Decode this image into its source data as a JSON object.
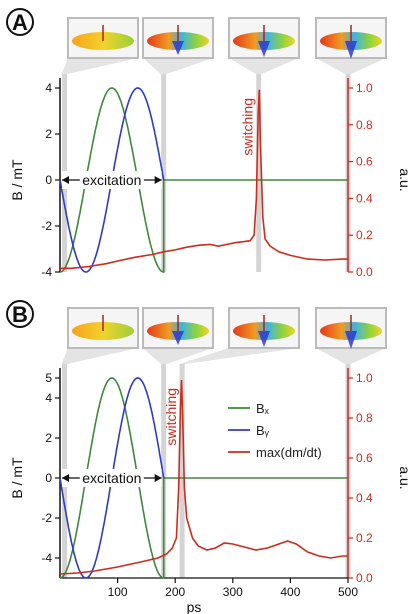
{
  "figure": {
    "colors": {
      "bx": "#3d8a3a",
      "by": "#2b3bcf",
      "dmdt": "#d12a1a",
      "marker": "#c9c9c9",
      "axis": "#111111"
    }
  },
  "chart_data": [
    {
      "panel": "A",
      "type": "line",
      "x_axis": {
        "min": 0,
        "max": 500,
        "ticks": [],
        "label": ""
      },
      "y_left": {
        "min": -4,
        "max": 4,
        "ticks": [
          4,
          2,
          0,
          -2,
          -4
        ],
        "label": "B / mT"
      },
      "y_right": {
        "min": 0,
        "max": 1.0,
        "ticks": [
          "0.0",
          "0.2",
          "0.4",
          "0.6",
          "0.8",
          "1.0"
        ],
        "label": "a.u."
      },
      "excitation": {
        "label": "excitation",
        "start": 0,
        "end": 180
      },
      "switching": {
        "label": "switching",
        "time": 345
      },
      "snapshot_times": [
        8,
        180,
        345,
        500
      ],
      "series": [
        {
          "key": "bx",
          "legend": "",
          "amplitude": 4,
          "center": 90,
          "half_width": 90,
          "axis": "left"
        },
        {
          "key": "by",
          "legend": "",
          "amplitude": 4,
          "center": 135,
          "half_width": 90,
          "axis": "left"
        },
        {
          "key": "dmdt",
          "legend": "",
          "axis": "right",
          "points": [
            [
              0,
              0.02
            ],
            [
              20,
              0.02
            ],
            [
              50,
              0.03
            ],
            [
              80,
              0.045
            ],
            [
              100,
              0.06
            ],
            [
              130,
              0.08
            ],
            [
              160,
              0.095
            ],
            [
              180,
              0.11
            ],
            [
              200,
              0.12
            ],
            [
              220,
              0.135
            ],
            [
              240,
              0.145
            ],
            [
              260,
              0.15
            ],
            [
              275,
              0.14
            ],
            [
              290,
              0.15
            ],
            [
              305,
              0.16
            ],
            [
              320,
              0.165
            ],
            [
              330,
              0.17
            ],
            [
              337,
              0.2
            ],
            [
              341,
              0.4
            ],
            [
              344,
              0.85
            ],
            [
              346,
              0.99
            ],
            [
              348,
              0.7
            ],
            [
              352,
              0.3
            ],
            [
              356,
              0.18
            ],
            [
              365,
              0.14
            ],
            [
              380,
              0.11
            ],
            [
              400,
              0.09
            ],
            [
              430,
              0.07
            ],
            [
              460,
              0.065
            ],
            [
              490,
              0.07
            ],
            [
              500,
              0.07
            ]
          ]
        }
      ]
    },
    {
      "panel": "B",
      "type": "line",
      "x_axis": {
        "min": 0,
        "max": 500,
        "ticks": [
          100,
          200,
          300,
          400,
          500
        ],
        "label": "ps"
      },
      "y_left": {
        "min": -5,
        "max": 5,
        "ticks": [
          5,
          4,
          2,
          0,
          -2,
          -4
        ],
        "label": "B / mT"
      },
      "y_right": {
        "min": 0,
        "max": 1.0,
        "ticks": [
          "0.0",
          "0.2",
          "0.4",
          "0.6",
          "0.8",
          "1.0"
        ],
        "label": "a.u."
      },
      "excitation": {
        "label": "excitation",
        "start": 0,
        "end": 180
      },
      "switching": {
        "label": "switching",
        "time": 212
      },
      "snapshot_times": [
        8,
        180,
        212,
        500
      ],
      "series": [
        {
          "key": "bx",
          "legend": "Bₓ",
          "amplitude": 5,
          "center": 90,
          "half_width": 90,
          "axis": "left"
        },
        {
          "key": "by",
          "legend": "Bᵧ",
          "amplitude": 5,
          "center": 135,
          "half_width": 90,
          "axis": "left"
        },
        {
          "key": "dmdt",
          "legend": "max(dm/dt)",
          "axis": "right",
          "points": [
            [
              0,
              0.02
            ],
            [
              30,
              0.025
            ],
            [
              60,
              0.035
            ],
            [
              100,
              0.055
            ],
            [
              140,
              0.08
            ],
            [
              170,
              0.1
            ],
            [
              185,
              0.12
            ],
            [
              195,
              0.15
            ],
            [
              202,
              0.2
            ],
            [
              206,
              0.45
            ],
            [
              209,
              0.85
            ],
            [
              211,
              0.99
            ],
            [
              213,
              0.8
            ],
            [
              216,
              0.45
            ],
            [
              220,
              0.3
            ],
            [
              225,
              0.25
            ],
            [
              230,
              0.2
            ],
            [
              240,
              0.16
            ],
            [
              255,
              0.14
            ],
            [
              270,
              0.15
            ],
            [
              285,
              0.175
            ],
            [
              300,
              0.17
            ],
            [
              320,
              0.155
            ],
            [
              340,
              0.14
            ],
            [
              360,
              0.15
            ],
            [
              380,
              0.17
            ],
            [
              395,
              0.185
            ],
            [
              410,
              0.17
            ],
            [
              430,
              0.13
            ],
            [
              450,
              0.11
            ],
            [
              470,
              0.1
            ],
            [
              490,
              0.11
            ],
            [
              500,
              0.11
            ]
          ]
        }
      ]
    }
  ]
}
